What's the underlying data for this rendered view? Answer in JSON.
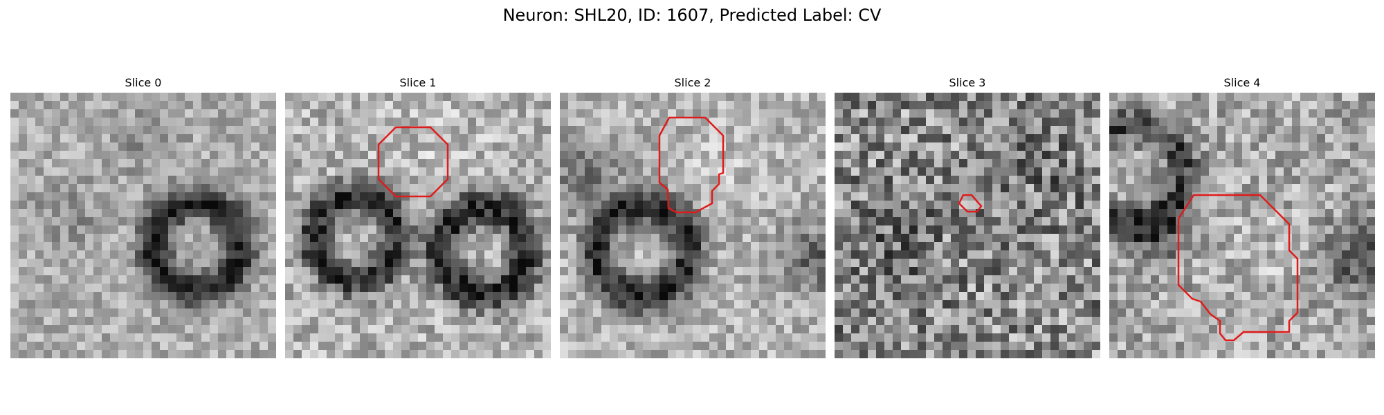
{
  "figure": {
    "title": "Neuron: SHL20, ID: 1607, Predicted Label: CV"
  },
  "colors": {
    "background": "#ffffff",
    "contour": "#e01b1b",
    "image_colormap": "grayscale"
  },
  "panels": [
    {
      "title": "Slice 0",
      "has_contour": false,
      "image_description_icon": "grayscale-microscopy-icon"
    },
    {
      "title": "Slice 1",
      "has_contour": true,
      "image_description_icon": "grayscale-microscopy-icon"
    },
    {
      "title": "Slice 2",
      "has_contour": true,
      "image_description_icon": "grayscale-microscopy-icon"
    },
    {
      "title": "Slice 3",
      "has_contour": true,
      "image_description_icon": "grayscale-microscopy-icon"
    },
    {
      "title": "Slice 4",
      "has_contour": true,
      "image_description_icon": "grayscale-microscopy-icon"
    }
  ]
}
